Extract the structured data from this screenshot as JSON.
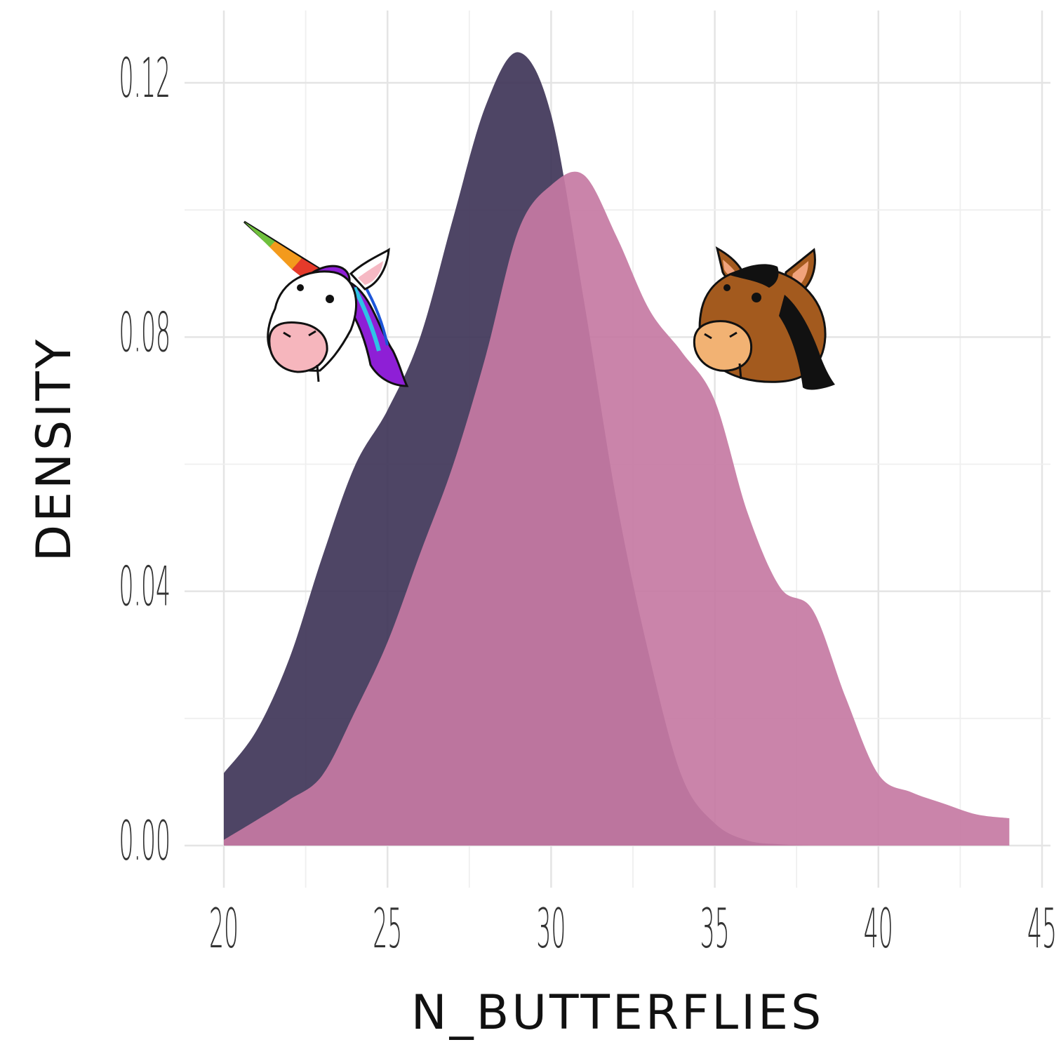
{
  "chart_data": {
    "type": "area",
    "title": "",
    "xlabel": "N_BUTTERFLIES",
    "ylabel": "DENSITY",
    "xlim": [
      20,
      45
    ],
    "ylim": [
      0,
      0.12
    ],
    "x_ticks": [
      "20",
      "25",
      "30",
      "35",
      "40",
      "45"
    ],
    "y_ticks": [
      "0.00",
      "0.04",
      "0.08",
      "0.12"
    ],
    "grid": true,
    "legend": "none",
    "series": [
      {
        "color": "#3f3558",
        "points": [
          [
            20,
            0.0114
          ],
          [
            21,
            0.0181
          ],
          [
            22,
            0.0294
          ],
          [
            23,
            0.0453
          ],
          [
            24,
            0.0597
          ],
          [
            25,
            0.0685
          ],
          [
            26,
            0.08
          ],
          [
            27,
            0.0986
          ],
          [
            28,
            0.1164
          ],
          [
            29,
            0.1248
          ],
          [
            30,
            0.115
          ],
          [
            31,
            0.0858
          ],
          [
            32,
            0.0542
          ],
          [
            33,
            0.0298
          ],
          [
            34,
            0.0108
          ],
          [
            35,
            0.0035
          ],
          [
            36,
            0.0008
          ],
          [
            37,
            0.0002
          ],
          [
            38,
            0.0
          ]
        ]
      },
      {
        "color": "#c57aa3",
        "points": [
          [
            20,
            0.0009
          ],
          [
            21,
            0.004
          ],
          [
            22,
            0.0072
          ],
          [
            23,
            0.011
          ],
          [
            24,
            0.021
          ],
          [
            25,
            0.032
          ],
          [
            26,
            0.046
          ],
          [
            27,
            0.0598
          ],
          [
            28,
            0.077
          ],
          [
            29,
            0.0968
          ],
          [
            30,
            0.1039
          ],
          [
            31,
            0.1055
          ],
          [
            32,
            0.0958
          ],
          [
            33,
            0.0843
          ],
          [
            34,
            0.0776
          ],
          [
            35,
            0.07
          ],
          [
            36,
            0.0524
          ],
          [
            37,
            0.0406
          ],
          [
            38,
            0.037
          ],
          [
            39,
            0.0233
          ],
          [
            40,
            0.0112
          ],
          [
            41,
            0.0084
          ],
          [
            42,
            0.0066
          ],
          [
            43,
            0.0049
          ],
          [
            44,
            0.0043
          ]
        ]
      }
    ],
    "icons": [
      "unicorn-head-icon",
      "horse-head-icon"
    ]
  }
}
